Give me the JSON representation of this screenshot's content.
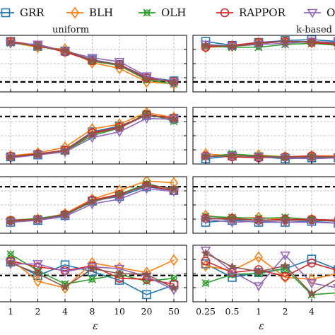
{
  "chart_data": {
    "type": "line",
    "legend": {
      "placement": "top",
      "entries": [
        {
          "name": "GRR",
          "color": "#1f77b4",
          "marker": "square"
        },
        {
          "name": "BLH",
          "color": "#ff7f0e",
          "marker": "diamond"
        },
        {
          "name": "OLH",
          "color": "#2ca02c",
          "marker": "x-circle"
        },
        {
          "name": "RAPPOR",
          "color": "#d62728",
          "marker": "circle"
        },
        {
          "name": "OUE",
          "color": "#9467bd",
          "marker": "triangle-down"
        },
        {
          "name": "",
          "color": "#8c564b",
          "marker": "star"
        }
      ]
    },
    "xlabel": "ε",
    "grid": true,
    "panels": [
      {
        "title": "uniform",
        "x": [
          "1",
          "2",
          "4",
          "8",
          "10",
          "20",
          "50"
        ],
        "rows": [
          {
            "ylim": [
              0,
              1
            ],
            "baseline": 0.12,
            "series": [
              {
                "name": "GRR",
                "values": [
                  0.96,
                  0.86,
                  0.76,
                  0.58,
                  0.48,
                  0.22,
                  0.14
                ]
              },
              {
                "name": "BLH",
                "values": [
                  0.94,
                  0.84,
                  0.8,
                  0.52,
                  0.4,
                  0.12,
                  0.08
                ]
              },
              {
                "name": "OLH",
                "values": [
                  0.93,
                  0.87,
                  0.75,
                  0.55,
                  0.46,
                  0.16,
                  0.08
                ]
              },
              {
                "name": "RAPPOR",
                "values": [
                  0.96,
                  0.88,
                  0.74,
                  0.56,
                  0.48,
                  0.2,
                  0.13
                ]
              },
              {
                "name": "OUE",
                "values": [
                  0.92,
                  0.9,
                  0.76,
                  0.62,
                  0.54,
                  0.24,
                  0.1
                ]
              },
              {
                "name": "",
                "values": [
                  0.95,
                  0.86,
                  0.77,
                  0.57,
                  0.47,
                  0.18,
                  0.12
                ]
              }
            ]
          },
          {
            "ylim": [
              0,
              1
            ],
            "baseline": 0.9,
            "series": [
              {
                "name": "GRR",
                "values": [
                  0.06,
                  0.1,
                  0.2,
                  0.58,
                  0.7,
                  0.92,
                  0.86
                ]
              },
              {
                "name": "BLH",
                "values": [
                  0.08,
                  0.14,
                  0.26,
                  0.64,
                  0.74,
                  0.98,
                  0.88
                ]
              },
              {
                "name": "OLH",
                "values": [
                  0.05,
                  0.12,
                  0.18,
                  0.5,
                  0.66,
                  0.96,
                  0.8
                ]
              },
              {
                "name": "RAPPOR",
                "values": [
                  0.07,
                  0.12,
                  0.2,
                  0.56,
                  0.68,
                  0.94,
                  0.86
                ]
              },
              {
                "name": "OUE",
                "values": [
                  0.04,
                  0.1,
                  0.16,
                  0.46,
                  0.58,
                  0.86,
                  0.84
                ]
              },
              {
                "name": "",
                "values": [
                  0.06,
                  0.11,
                  0.19,
                  0.54,
                  0.66,
                  0.93,
                  0.85
                ]
              }
            ]
          },
          {
            "ylim": [
              0,
              1
            ],
            "baseline": 0.88,
            "series": [
              {
                "name": "GRR",
                "values": [
                  0.14,
                  0.18,
                  0.28,
                  0.58,
                  0.68,
                  0.88,
                  0.8
                ]
              },
              {
                "name": "BLH",
                "values": [
                  0.16,
                  0.2,
                  0.32,
                  0.62,
                  0.8,
                  1.0,
                  0.96
                ]
              },
              {
                "name": "OLH",
                "values": [
                  0.18,
                  0.22,
                  0.3,
                  0.56,
                  0.72,
                  0.94,
                  0.82
                ]
              },
              {
                "name": "RAPPOR",
                "values": [
                  0.18,
                  0.2,
                  0.3,
                  0.6,
                  0.72,
                  0.9,
                  0.8
                ]
              },
              {
                "name": "OUE",
                "values": [
                  0.14,
                  0.18,
                  0.26,
                  0.52,
                  0.62,
                  0.84,
                  0.78
                ]
              },
              {
                "name": "",
                "values": [
                  0.16,
                  0.2,
                  0.3,
                  0.58,
                  0.7,
                  0.92,
                  0.84
                ]
              }
            ]
          },
          {
            "ylim": [
              0,
              1
            ],
            "baseline": 0.46,
            "series": [
              {
                "name": "GRR",
                "values": [
                  0.74,
                  0.46,
                  0.68,
                  0.54,
                  0.36,
                  0.06,
                  0.26
                ]
              },
              {
                "name": "BLH",
                "values": [
                  0.8,
                  0.34,
                  0.2,
                  0.72,
                  0.62,
                  0.52,
                  0.78
                ]
              },
              {
                "name": "OLH",
                "values": [
                  0.9,
                  0.56,
                  0.28,
                  0.38,
                  0.48,
                  0.34,
                  0.4
                ]
              },
              {
                "name": "RAPPOR",
                "values": [
                  0.76,
                  0.64,
                  0.56,
                  0.66,
                  0.4,
                  0.38,
                  0.28
                ]
              },
              {
                "name": "OUE",
                "values": [
                  0.7,
                  0.7,
                  0.54,
                  0.64,
                  0.6,
                  0.44,
                  0.16
                ]
              },
              {
                "name": "",
                "values": [
                  0.72,
                  0.5,
                  0.22,
                  0.6,
                  0.5,
                  0.48,
                  0.2
                ]
              }
            ]
          }
        ]
      },
      {
        "title": "k-based",
        "x": [
          "0.25",
          "0.5",
          "1",
          "2",
          "4",
          ""
        ],
        "rows": [
          {
            "ylim": [
              0,
              1
            ],
            "baseline": 0.12,
            "series": [
              {
                "name": "GRR",
                "values": [
                  0.96,
                  0.88,
                  0.94,
                  0.98,
                  1.0,
                  0.96
                ]
              },
              {
                "name": "BLH",
                "values": [
                  0.84,
                  0.86,
                  0.92,
                  0.96,
                  0.94,
                  0.92
                ]
              },
              {
                "name": "OLH",
                "values": [
                  0.86,
                  0.84,
                  0.84,
                  0.9,
                  0.92,
                  0.88
                ]
              },
              {
                "name": "RAPPOR",
                "values": [
                  0.84,
                  0.88,
                  0.94,
                  0.96,
                  0.94,
                  0.9
                ]
              },
              {
                "name": "OUE",
                "values": [
                  0.9,
                  0.86,
                  0.9,
                  0.92,
                  0.96,
                  0.94
                ]
              },
              {
                "name": "",
                "values": [
                  0.88,
                  0.86,
                  0.92,
                  0.96,
                  0.96,
                  0.92
                ]
              }
            ]
          },
          {
            "ylim": [
              0,
              1
            ],
            "baseline": 0.9,
            "series": [
              {
                "name": "GRR",
                "values": [
                  0.02,
                  0.08,
                  0.06,
                  0.02,
                  0.04,
                  0.04
                ]
              },
              {
                "name": "BLH",
                "values": [
                  0.12,
                  0.08,
                  0.1,
                  0.06,
                  0.08,
                  0.08
                ]
              },
              {
                "name": "OLH",
                "values": [
                  0.06,
                  0.12,
                  0.08,
                  0.06,
                  0.06,
                  0.06
                ]
              },
              {
                "name": "RAPPOR",
                "values": [
                  0.08,
                  0.06,
                  0.04,
                  0.06,
                  0.08,
                  0.06
                ]
              },
              {
                "name": "OUE",
                "values": [
                  0.06,
                  0.08,
                  0.06,
                  0.04,
                  0.02,
                  0.04
                ]
              },
              {
                "name": "",
                "values": [
                  0.07,
                  0.08,
                  0.07,
                  0.05,
                  0.06,
                  0.06
                ]
              }
            ]
          },
          {
            "ylim": [
              0,
              1
            ],
            "baseline": 0.88,
            "series": [
              {
                "name": "GRR",
                "values": [
                  0.14,
                  0.18,
                  0.14,
                  0.14,
                  0.16,
                  0.12
                ]
              },
              {
                "name": "BLH",
                "values": [
                  0.28,
                  0.22,
                  0.24,
                  0.2,
                  0.2,
                  0.16
                ]
              },
              {
                "name": "OLH",
                "values": [
                  0.26,
                  0.24,
                  0.22,
                  0.24,
                  0.2,
                  0.18
                ]
              },
              {
                "name": "RAPPOR",
                "values": [
                  0.22,
                  0.22,
                  0.18,
                  0.2,
                  0.2,
                  0.18
                ]
              },
              {
                "name": "OUE",
                "values": [
                  0.2,
                  0.14,
                  0.16,
                  0.14,
                  0.14,
                  0.12
                ]
              },
              {
                "name": "",
                "values": [
                  0.22,
                  0.2,
                  0.18,
                  0.18,
                  0.18,
                  0.16
                ]
              }
            ]
          },
          {
            "ylim": [
              0,
              1
            ],
            "baseline": 0.46,
            "series": [
              {
                "name": "GRR",
                "values": [
                  0.7,
                  0.42,
                  0.52,
                  0.6,
                  0.8,
                  0.58
                ]
              },
              {
                "name": "BLH",
                "values": [
                  0.66,
                  0.56,
                  0.84,
                  0.42,
                  0.38,
                  0.5
                ]
              },
              {
                "name": "OLH",
                "values": [
                  0.3,
                  0.48,
                  0.5,
                  0.6,
                  0.06,
                  0.1
                ]
              },
              {
                "name": "RAPPOR",
                "values": [
                  0.76,
                  0.52,
                  0.58,
                  0.44,
                  0.72,
                  0.56
                ]
              },
              {
                "name": "OUE",
                "values": [
                  0.98,
                  0.54,
                  0.24,
                  0.88,
                  0.3,
                  0.2
                ]
              },
              {
                "name": "",
                "values": [
                  0.92,
                  0.64,
                  0.54,
                  0.66,
                  0.08,
                  0.4
                ]
              }
            ]
          }
        ]
      }
    ]
  }
}
